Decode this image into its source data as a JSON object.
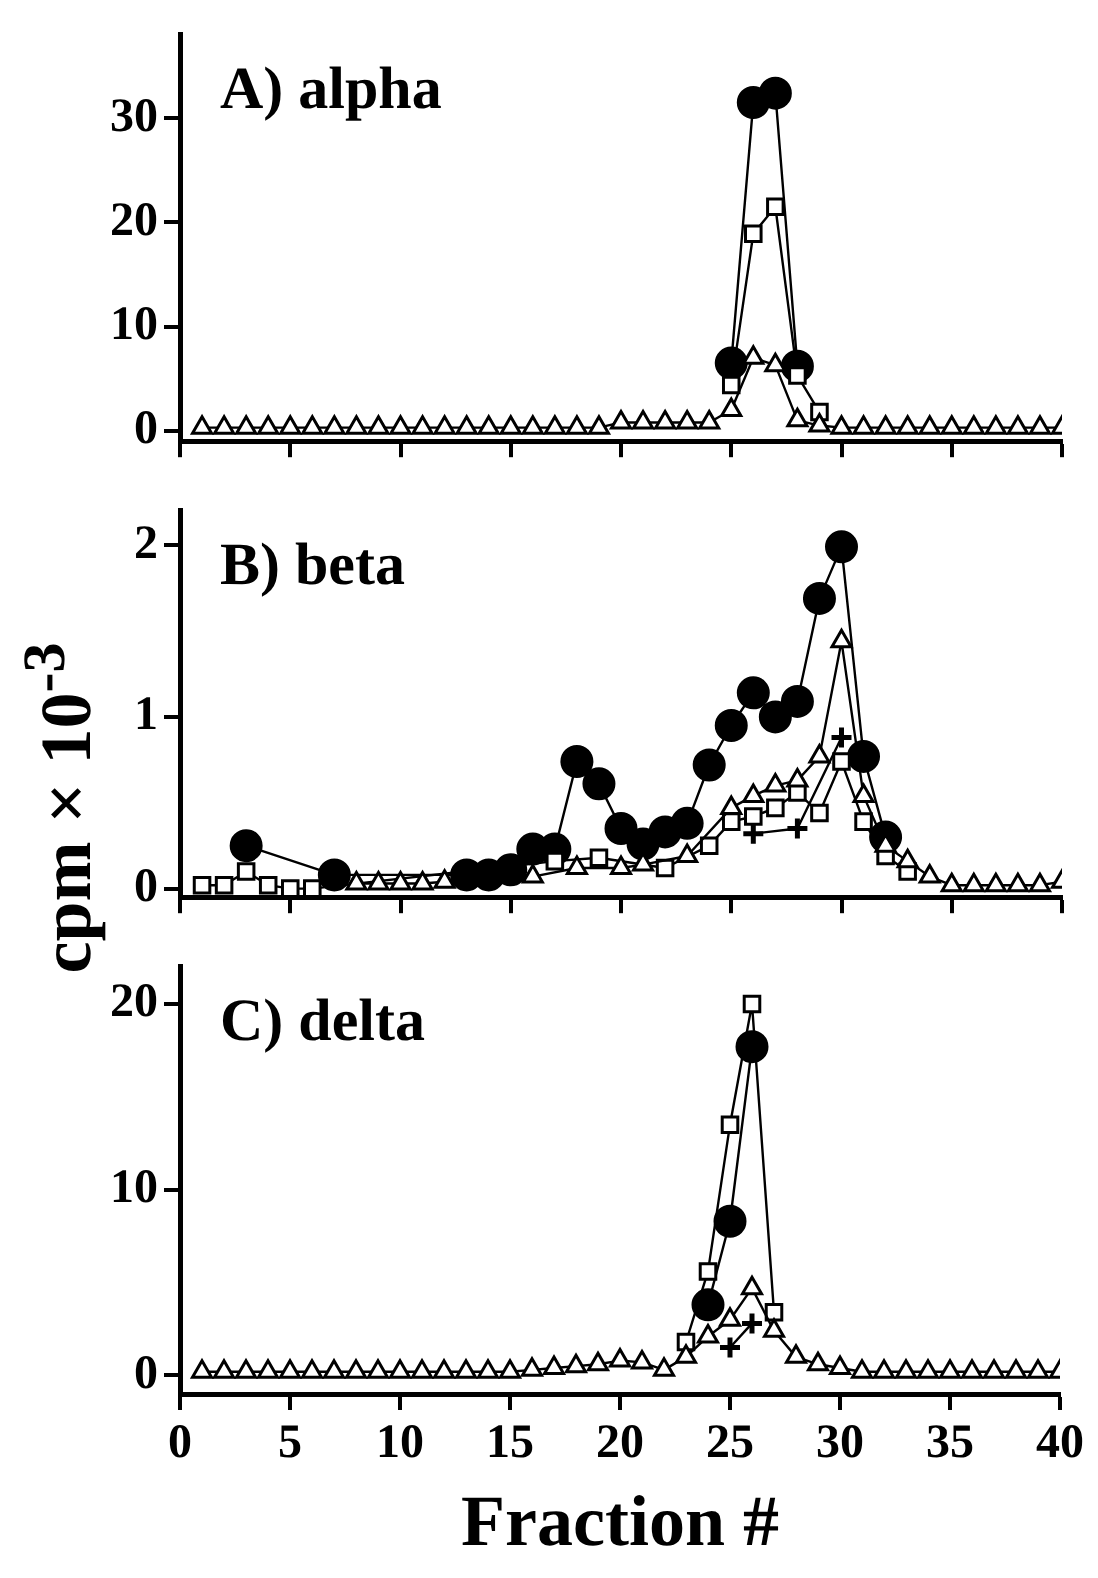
{
  "chart_data": [
    {
      "type": "line",
      "title": "A) alpha",
      "xlim": [
        0,
        40
      ],
      "xticks": [
        0,
        5,
        10,
        15,
        20,
        25,
        30,
        35,
        40
      ],
      "ylim": [
        -1,
        38
      ],
      "yticks": [
        0,
        10,
        20,
        30
      ],
      "tick_labels": "y",
      "grid": false,
      "legend": false,
      "line_style": "solid",
      "series": [
        {
          "color": "#000000",
          "marker": "circle",
          "x": [
            25,
            26,
            27,
            28
          ],
          "values": [
            6.5,
            31.5,
            32.4,
            6.2
          ]
        },
        {
          "color": "#000000",
          "marker": "square",
          "x": [
            25,
            26,
            27,
            28,
            29
          ],
          "values": [
            4.4,
            18.9,
            21.5,
            5.3,
            1.8
          ]
        },
        {
          "color": "#000000",
          "marker": "triangle",
          "x": [
            1,
            2,
            3,
            4,
            5,
            6,
            7,
            8,
            9,
            10,
            11,
            12,
            13,
            14,
            15,
            16,
            17,
            18,
            19,
            20,
            21,
            22,
            23,
            24,
            25,
            26,
            27,
            28,
            29,
            30,
            31,
            32,
            33,
            34,
            35,
            36,
            37,
            38,
            39,
            40
          ],
          "values": [
            0.3,
            0.3,
            0.3,
            0.3,
            0.3,
            0.3,
            0.3,
            0.3,
            0.3,
            0.3,
            0.3,
            0.3,
            0.3,
            0.3,
            0.3,
            0.3,
            0.3,
            0.3,
            0.3,
            0.8,
            0.8,
            0.8,
            0.8,
            0.8,
            2.0,
            7.0,
            6.3,
            1.0,
            0.5,
            0.3,
            0.3,
            0.3,
            0.3,
            0.3,
            0.3,
            0.3,
            0.3,
            0.3,
            0.3,
            0.3
          ]
        }
      ]
    },
    {
      "type": "line",
      "title": "B) beta",
      "ylabel": "cpm × 10$^{-3}$",
      "xlim": [
        0,
        40
      ],
      "xticks": [
        0,
        5,
        10,
        15,
        20,
        25,
        30,
        35,
        40
      ],
      "ylim": [
        -0.05,
        2.2
      ],
      "yticks": [
        0,
        1,
        2
      ],
      "tick_labels": "y",
      "grid": false,
      "legend": false,
      "line_style": "solid",
      "series": [
        {
          "color": "#000000",
          "marker": "circle",
          "x": [
            3,
            7,
            13,
            14,
            15,
            16,
            17,
            18,
            19,
            20,
            21,
            22,
            23,
            24,
            25,
            26,
            27,
            28,
            29,
            30,
            31,
            32
          ],
          "values": [
            0.25,
            0.08,
            0.08,
            0.08,
            0.11,
            0.23,
            0.23,
            0.74,
            0.61,
            0.35,
            0.26,
            0.33,
            0.38,
            0.72,
            0.95,
            1.14,
            1.0,
            1.09,
            1.69,
            1.99,
            0.77,
            0.3
          ]
        },
        {
          "color": "#000000",
          "marker": "square",
          "x": [
            1,
            2,
            3,
            4,
            5,
            6,
            17,
            19,
            22,
            24,
            25,
            26,
            27,
            28,
            29,
            30,
            31,
            32,
            33
          ],
          "values": [
            0.02,
            0.02,
            0.1,
            0.02,
            0.0,
            0.0,
            0.16,
            0.18,
            0.12,
            0.25,
            0.39,
            0.42,
            0.47,
            0.56,
            0.44,
            0.74,
            0.39,
            0.19,
            0.1
          ]
        },
        {
          "color": "#000000",
          "marker": "triangle",
          "x": [
            8,
            9,
            10,
            11,
            12,
            16,
            18,
            20,
            21,
            23,
            25,
            26,
            27,
            28,
            29,
            30,
            31,
            32,
            33,
            34,
            35,
            36,
            37,
            38,
            39,
            40
          ],
          "values": [
            0.03,
            0.03,
            0.03,
            0.03,
            0.04,
            0.07,
            0.12,
            0.12,
            0.14,
            0.19,
            0.47,
            0.54,
            0.6,
            0.63,
            0.77,
            1.44,
            0.54,
            0.25,
            0.16,
            0.07,
            0.02,
            0.02,
            0.02,
            0.02,
            0.02,
            0.04
          ]
        },
        {
          "color": "#000000",
          "marker": "cross",
          "x": [
            26,
            28,
            30
          ],
          "values": [
            0.32,
            0.35,
            0.88
          ]
        }
      ]
    },
    {
      "type": "line",
      "title": "C) delta",
      "xlabel": "Fraction #",
      "xlim": [
        0,
        40
      ],
      "xticks": [
        0,
        5,
        10,
        15,
        20,
        25,
        30,
        35,
        40
      ],
      "ylim": [
        -1,
        22
      ],
      "yticks": [
        0,
        10,
        20
      ],
      "grid": false,
      "legend": false,
      "line_style": "solid",
      "series": [
        {
          "color": "#000000",
          "marker": "circle",
          "x": [
            24,
            25,
            26
          ],
          "values": [
            3.8,
            8.3,
            17.7
          ]
        },
        {
          "color": "#000000",
          "marker": "square",
          "x": [
            23,
            24,
            25,
            26,
            27
          ],
          "values": [
            1.8,
            5.6,
            13.5,
            20.0,
            3.4
          ]
        },
        {
          "color": "#000000",
          "marker": "triangle",
          "x": [
            1,
            2,
            3,
            4,
            5,
            6,
            7,
            8,
            9,
            10,
            11,
            12,
            13,
            14,
            15,
            16,
            17,
            18,
            19,
            20,
            21,
            22,
            23,
            24,
            25,
            26,
            27,
            28,
            29,
            30,
            31,
            32,
            33,
            34,
            35,
            36,
            37,
            38,
            39,
            40
          ],
          "values": [
            0.2,
            0.2,
            0.2,
            0.2,
            0.2,
            0.2,
            0.2,
            0.2,
            0.2,
            0.2,
            0.2,
            0.2,
            0.2,
            0.2,
            0.2,
            0.3,
            0.4,
            0.5,
            0.6,
            0.8,
            0.7,
            0.3,
            1.0,
            2.1,
            3.0,
            4.7,
            2.4,
            1.0,
            0.6,
            0.4,
            0.2,
            0.2,
            0.2,
            0.2,
            0.2,
            0.2,
            0.2,
            0.2,
            0.2,
            0.2
          ]
        },
        {
          "color": "#000000",
          "marker": "cross",
          "x": [
            25,
            26
          ],
          "values": [
            1.5,
            2.8
          ]
        }
      ]
    }
  ]
}
